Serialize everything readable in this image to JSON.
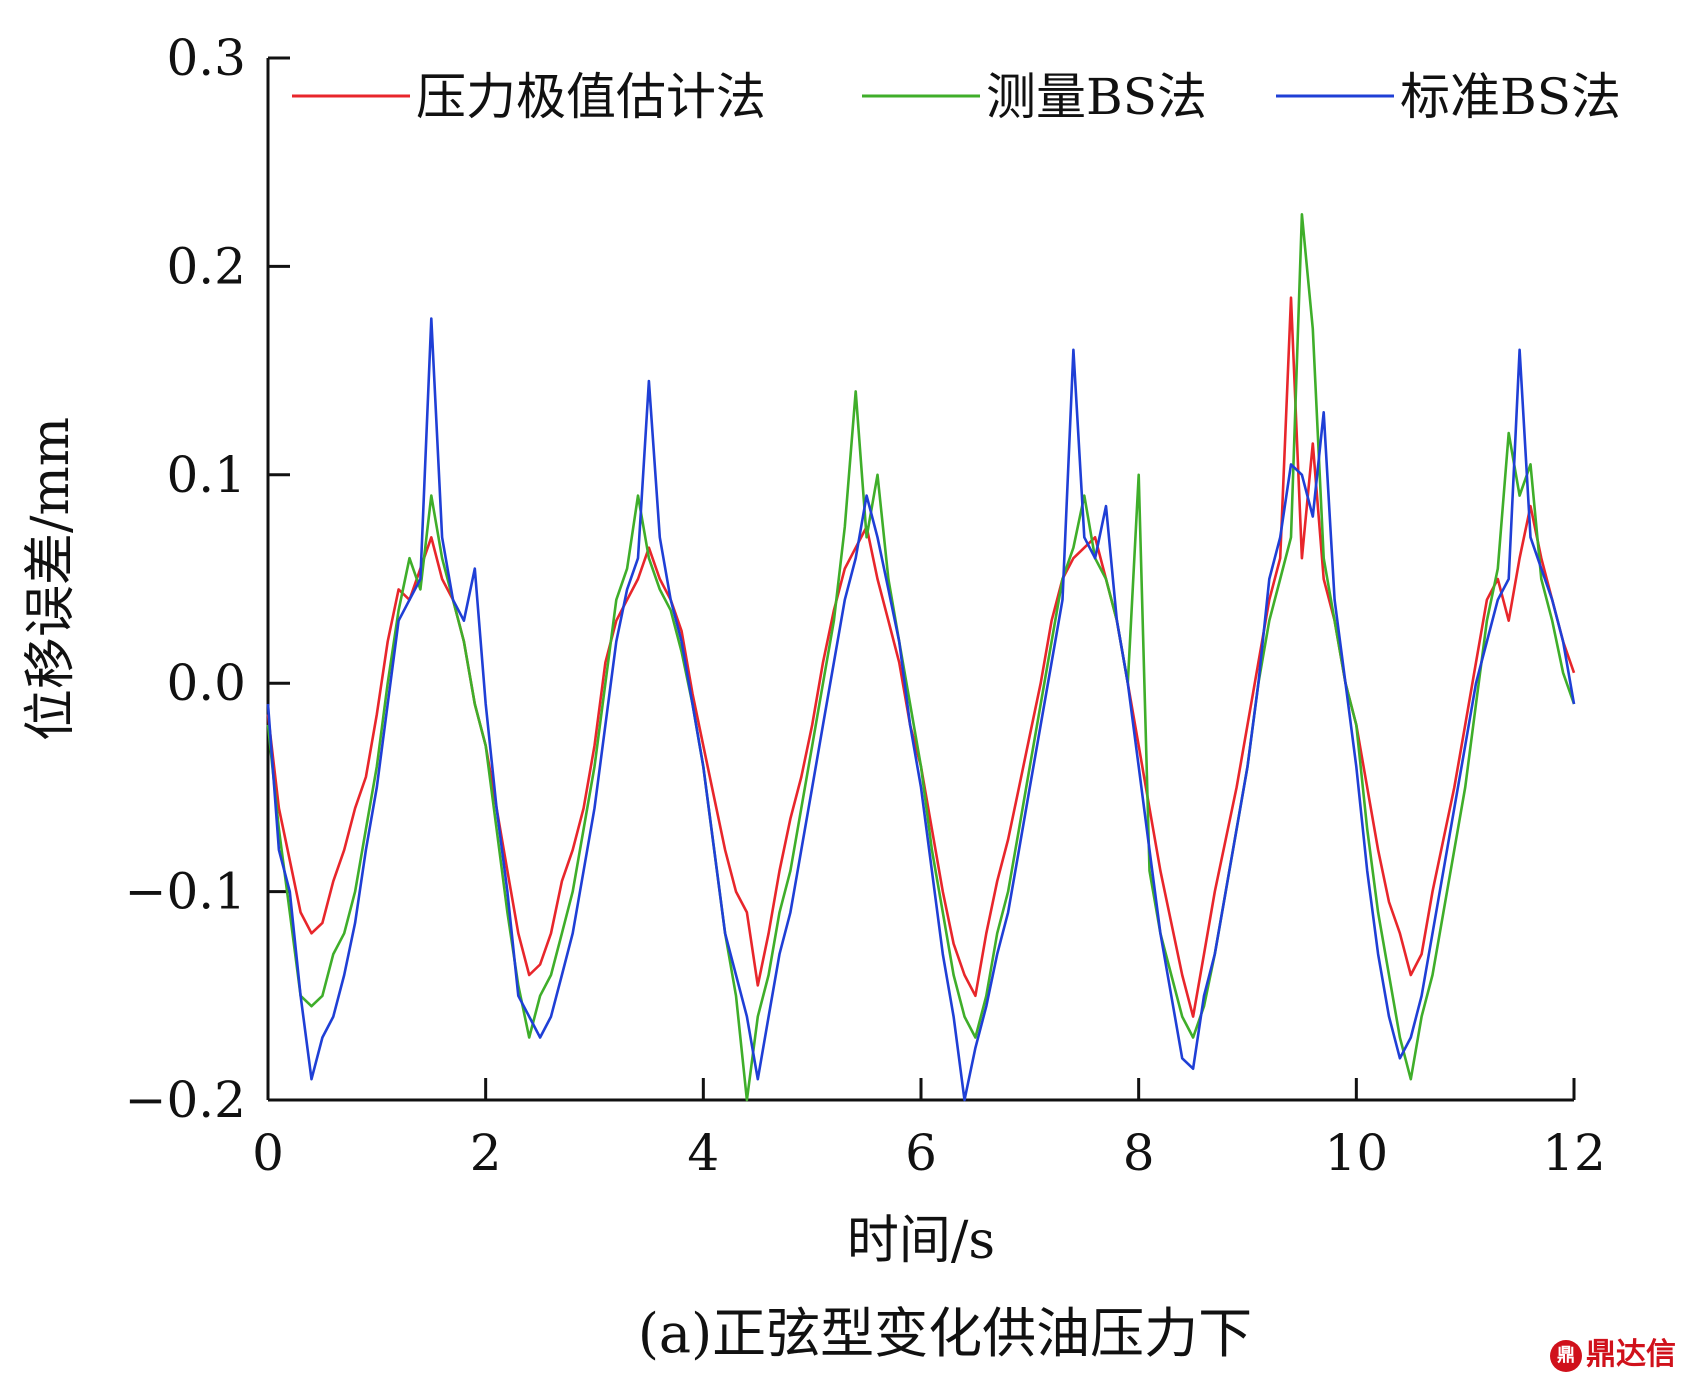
{
  "chart_data": {
    "type": "line",
    "title": "",
    "caption": "(a)正弦型变化供油压力下",
    "xlabel": "时间/s",
    "ylabel": "位移误差/mm",
    "xlim": [
      0,
      12
    ],
    "ylim": [
      -0.2,
      0.3
    ],
    "xticks": [
      0,
      2,
      4,
      6,
      8,
      10,
      12
    ],
    "xtick_labels": [
      "0",
      "2",
      "4",
      "6",
      "8",
      "10",
      "12"
    ],
    "yticks": [
      -0.2,
      -0.1,
      0.0,
      0.1,
      0.2,
      0.3
    ],
    "ytick_labels": [
      "−0.2",
      "−0.1",
      "0.0",
      "0.1",
      "0.2",
      "0.3"
    ],
    "grid": false,
    "legend_position": "top",
    "series": [
      {
        "name": "压力极值估计法",
        "color": "#e8262b",
        "x": [
          0,
          0.1,
          0.2,
          0.3,
          0.4,
          0.5,
          0.6,
          0.7,
          0.8,
          0.9,
          1.0,
          1.1,
          1.2,
          1.3,
          1.4,
          1.5,
          1.6,
          1.7,
          1.8,
          1.9,
          2.0,
          2.1,
          2.2,
          2.3,
          2.4,
          2.5,
          2.6,
          2.7,
          2.8,
          2.9,
          3.0,
          3.1,
          3.2,
          3.3,
          3.4,
          3.5,
          3.6,
          3.7,
          3.8,
          3.9,
          4.0,
          4.1,
          4.2,
          4.3,
          4.4,
          4.5,
          4.6,
          4.7,
          4.8,
          4.9,
          5.0,
          5.1,
          5.2,
          5.3,
          5.4,
          5.5,
          5.6,
          5.7,
          5.8,
          5.9,
          6.0,
          6.1,
          6.2,
          6.3,
          6.4,
          6.5,
          6.6,
          6.7,
          6.8,
          6.9,
          7.0,
          7.1,
          7.2,
          7.3,
          7.4,
          7.5,
          7.6,
          7.7,
          7.8,
          7.9,
          8.0,
          8.1,
          8.2,
          8.3,
          8.4,
          8.5,
          8.6,
          8.7,
          8.8,
          8.9,
          9.0,
          9.1,
          9.2,
          9.3,
          9.4,
          9.5,
          9.6,
          9.7,
          9.8,
          9.9,
          10.0,
          10.1,
          10.2,
          10.3,
          10.4,
          10.5,
          10.6,
          10.7,
          10.8,
          10.9,
          11.0,
          11.1,
          11.2,
          11.3,
          11.4,
          11.5,
          11.6,
          11.7,
          11.8,
          11.9,
          12.0
        ],
        "y": [
          -0.015,
          -0.06,
          -0.085,
          -0.11,
          -0.12,
          -0.115,
          -0.095,
          -0.08,
          -0.06,
          -0.045,
          -0.015,
          0.02,
          0.045,
          0.04,
          0.055,
          0.07,
          0.05,
          0.04,
          0.02,
          -0.01,
          -0.03,
          -0.06,
          -0.09,
          -0.12,
          -0.14,
          -0.135,
          -0.12,
          -0.095,
          -0.08,
          -0.06,
          -0.03,
          0.01,
          0.03,
          0.04,
          0.05,
          0.065,
          0.05,
          0.04,
          0.025,
          -0.005,
          -0.03,
          -0.055,
          -0.08,
          -0.1,
          -0.11,
          -0.145,
          -0.12,
          -0.09,
          -0.065,
          -0.045,
          -0.02,
          0.01,
          0.035,
          0.055,
          0.065,
          0.075,
          0.05,
          0.03,
          0.01,
          -0.02,
          -0.04,
          -0.07,
          -0.1,
          -0.125,
          -0.14,
          -0.15,
          -0.12,
          -0.095,
          -0.075,
          -0.05,
          -0.025,
          0.0,
          0.03,
          0.05,
          0.06,
          0.065,
          0.07,
          0.05,
          0.03,
          0.0,
          -0.03,
          -0.06,
          -0.09,
          -0.115,
          -0.14,
          -0.16,
          -0.13,
          -0.1,
          -0.075,
          -0.05,
          -0.02,
          0.01,
          0.04,
          0.06,
          0.185,
          0.06,
          0.115,
          0.05,
          0.03,
          0.0,
          -0.02,
          -0.05,
          -0.08,
          -0.105,
          -0.12,
          -0.14,
          -0.13,
          -0.1,
          -0.075,
          -0.05,
          -0.02,
          0.01,
          0.04,
          0.05,
          0.03,
          0.06,
          0.085,
          0.06,
          0.04,
          0.02,
          0.005
        ]
      },
      {
        "name": "测量BS法",
        "color": "#3fae2a",
        "x": [
          0,
          0.1,
          0.2,
          0.3,
          0.4,
          0.5,
          0.6,
          0.7,
          0.8,
          0.9,
          1.0,
          1.1,
          1.2,
          1.3,
          1.4,
          1.5,
          1.6,
          1.7,
          1.8,
          1.9,
          2.0,
          2.1,
          2.2,
          2.3,
          2.4,
          2.5,
          2.6,
          2.7,
          2.8,
          2.9,
          3.0,
          3.1,
          3.2,
          3.3,
          3.4,
          3.5,
          3.6,
          3.7,
          3.8,
          3.9,
          4.0,
          4.1,
          4.2,
          4.3,
          4.4,
          4.5,
          4.6,
          4.7,
          4.8,
          4.9,
          5.0,
          5.1,
          5.2,
          5.3,
          5.4,
          5.5,
          5.6,
          5.7,
          5.8,
          5.9,
          6.0,
          6.1,
          6.2,
          6.3,
          6.4,
          6.5,
          6.6,
          6.7,
          6.8,
          6.9,
          7.0,
          7.1,
          7.2,
          7.3,
          7.4,
          7.5,
          7.6,
          7.7,
          7.8,
          7.9,
          8.0,
          8.1,
          8.2,
          8.3,
          8.4,
          8.5,
          8.6,
          8.7,
          8.8,
          8.9,
          9.0,
          9.1,
          9.2,
          9.3,
          9.4,
          9.5,
          9.6,
          9.7,
          9.8,
          9.9,
          10.0,
          10.1,
          10.2,
          10.3,
          10.4,
          10.5,
          10.6,
          10.7,
          10.8,
          10.9,
          11.0,
          11.1,
          11.2,
          11.3,
          11.4,
          11.5,
          11.6,
          11.7,
          11.8,
          11.9,
          12.0
        ],
        "y": [
          -0.02,
          -0.07,
          -0.11,
          -0.15,
          -0.155,
          -0.15,
          -0.13,
          -0.12,
          -0.1,
          -0.07,
          -0.04,
          0.0,
          0.035,
          0.06,
          0.045,
          0.09,
          0.06,
          0.04,
          0.02,
          -0.01,
          -0.03,
          -0.07,
          -0.11,
          -0.145,
          -0.17,
          -0.15,
          -0.14,
          -0.12,
          -0.1,
          -0.07,
          -0.04,
          0.0,
          0.04,
          0.055,
          0.09,
          0.06,
          0.045,
          0.035,
          0.015,
          -0.01,
          -0.04,
          -0.08,
          -0.12,
          -0.15,
          -0.2,
          -0.16,
          -0.14,
          -0.11,
          -0.09,
          -0.06,
          -0.03,
          0.0,
          0.03,
          0.075,
          0.14,
          0.07,
          0.1,
          0.05,
          0.02,
          -0.01,
          -0.04,
          -0.08,
          -0.11,
          -0.14,
          -0.16,
          -0.17,
          -0.15,
          -0.12,
          -0.1,
          -0.07,
          -0.04,
          -0.01,
          0.02,
          0.05,
          0.065,
          0.09,
          0.06,
          0.05,
          0.03,
          0.0,
          0.1,
          -0.09,
          -0.12,
          -0.14,
          -0.16,
          -0.17,
          -0.155,
          -0.13,
          -0.1,
          -0.07,
          -0.04,
          0.0,
          0.03,
          0.05,
          0.07,
          0.225,
          0.17,
          0.06,
          0.03,
          0.0,
          -0.02,
          -0.07,
          -0.11,
          -0.14,
          -0.17,
          -0.19,
          -0.16,
          -0.14,
          -0.11,
          -0.08,
          -0.05,
          -0.01,
          0.03,
          0.055,
          0.12,
          0.09,
          0.105,
          0.05,
          0.03,
          0.005,
          -0.01
        ]
      },
      {
        "name": "标准BS法",
        "color": "#1f3fd6",
        "x": [
          0,
          0.1,
          0.2,
          0.3,
          0.4,
          0.5,
          0.6,
          0.7,
          0.8,
          0.9,
          1.0,
          1.1,
          1.2,
          1.3,
          1.4,
          1.5,
          1.6,
          1.7,
          1.8,
          1.9,
          2.0,
          2.1,
          2.2,
          2.3,
          2.4,
          2.5,
          2.6,
          2.7,
          2.8,
          2.9,
          3.0,
          3.1,
          3.2,
          3.3,
          3.4,
          3.5,
          3.6,
          3.7,
          3.8,
          3.9,
          4.0,
          4.1,
          4.2,
          4.3,
          4.4,
          4.5,
          4.6,
          4.7,
          4.8,
          4.9,
          5.0,
          5.1,
          5.2,
          5.3,
          5.4,
          5.5,
          5.6,
          5.7,
          5.8,
          5.9,
          6.0,
          6.1,
          6.2,
          6.3,
          6.4,
          6.5,
          6.6,
          6.7,
          6.8,
          6.9,
          7.0,
          7.1,
          7.2,
          7.3,
          7.4,
          7.5,
          7.6,
          7.7,
          7.8,
          7.9,
          8.0,
          8.1,
          8.2,
          8.3,
          8.4,
          8.5,
          8.6,
          8.7,
          8.8,
          8.9,
          9.0,
          9.1,
          9.2,
          9.3,
          9.4,
          9.5,
          9.6,
          9.7,
          9.8,
          9.9,
          10.0,
          10.1,
          10.2,
          10.3,
          10.4,
          10.5,
          10.6,
          10.7,
          10.8,
          10.9,
          11.0,
          11.1,
          11.2,
          11.3,
          11.4,
          11.5,
          11.6,
          11.7,
          11.8,
          11.9,
          12.0
        ],
        "y": [
          -0.01,
          -0.08,
          -0.1,
          -0.15,
          -0.19,
          -0.17,
          -0.16,
          -0.14,
          -0.115,
          -0.08,
          -0.05,
          -0.01,
          0.03,
          0.04,
          0.05,
          0.175,
          0.07,
          0.04,
          0.03,
          0.055,
          -0.01,
          -0.06,
          -0.1,
          -0.15,
          -0.16,
          -0.17,
          -0.16,
          -0.14,
          -0.12,
          -0.09,
          -0.06,
          -0.02,
          0.02,
          0.045,
          0.06,
          0.145,
          0.07,
          0.04,
          0.02,
          -0.01,
          -0.04,
          -0.08,
          -0.12,
          -0.14,
          -0.16,
          -0.19,
          -0.16,
          -0.13,
          -0.11,
          -0.08,
          -0.05,
          -0.02,
          0.01,
          0.04,
          0.06,
          0.09,
          0.07,
          0.045,
          0.02,
          -0.02,
          -0.05,
          -0.09,
          -0.13,
          -0.16,
          -0.2,
          -0.175,
          -0.155,
          -0.13,
          -0.11,
          -0.08,
          -0.05,
          -0.02,
          0.01,
          0.04,
          0.16,
          0.07,
          0.06,
          0.085,
          0.03,
          0.0,
          -0.04,
          -0.08,
          -0.12,
          -0.15,
          -0.18,
          -0.185,
          -0.15,
          -0.13,
          -0.1,
          -0.07,
          -0.04,
          0.0,
          0.05,
          0.07,
          0.105,
          0.1,
          0.08,
          0.13,
          0.04,
          0.0,
          -0.04,
          -0.09,
          -0.13,
          -0.16,
          -0.18,
          -0.17,
          -0.15,
          -0.12,
          -0.09,
          -0.06,
          -0.03,
          0.0,
          0.02,
          0.04,
          0.05,
          0.16,
          0.07,
          0.055,
          0.04,
          0.02,
          -0.01
        ]
      }
    ]
  },
  "watermark": {
    "mark": "鼎",
    "text": "鼎达信"
  }
}
